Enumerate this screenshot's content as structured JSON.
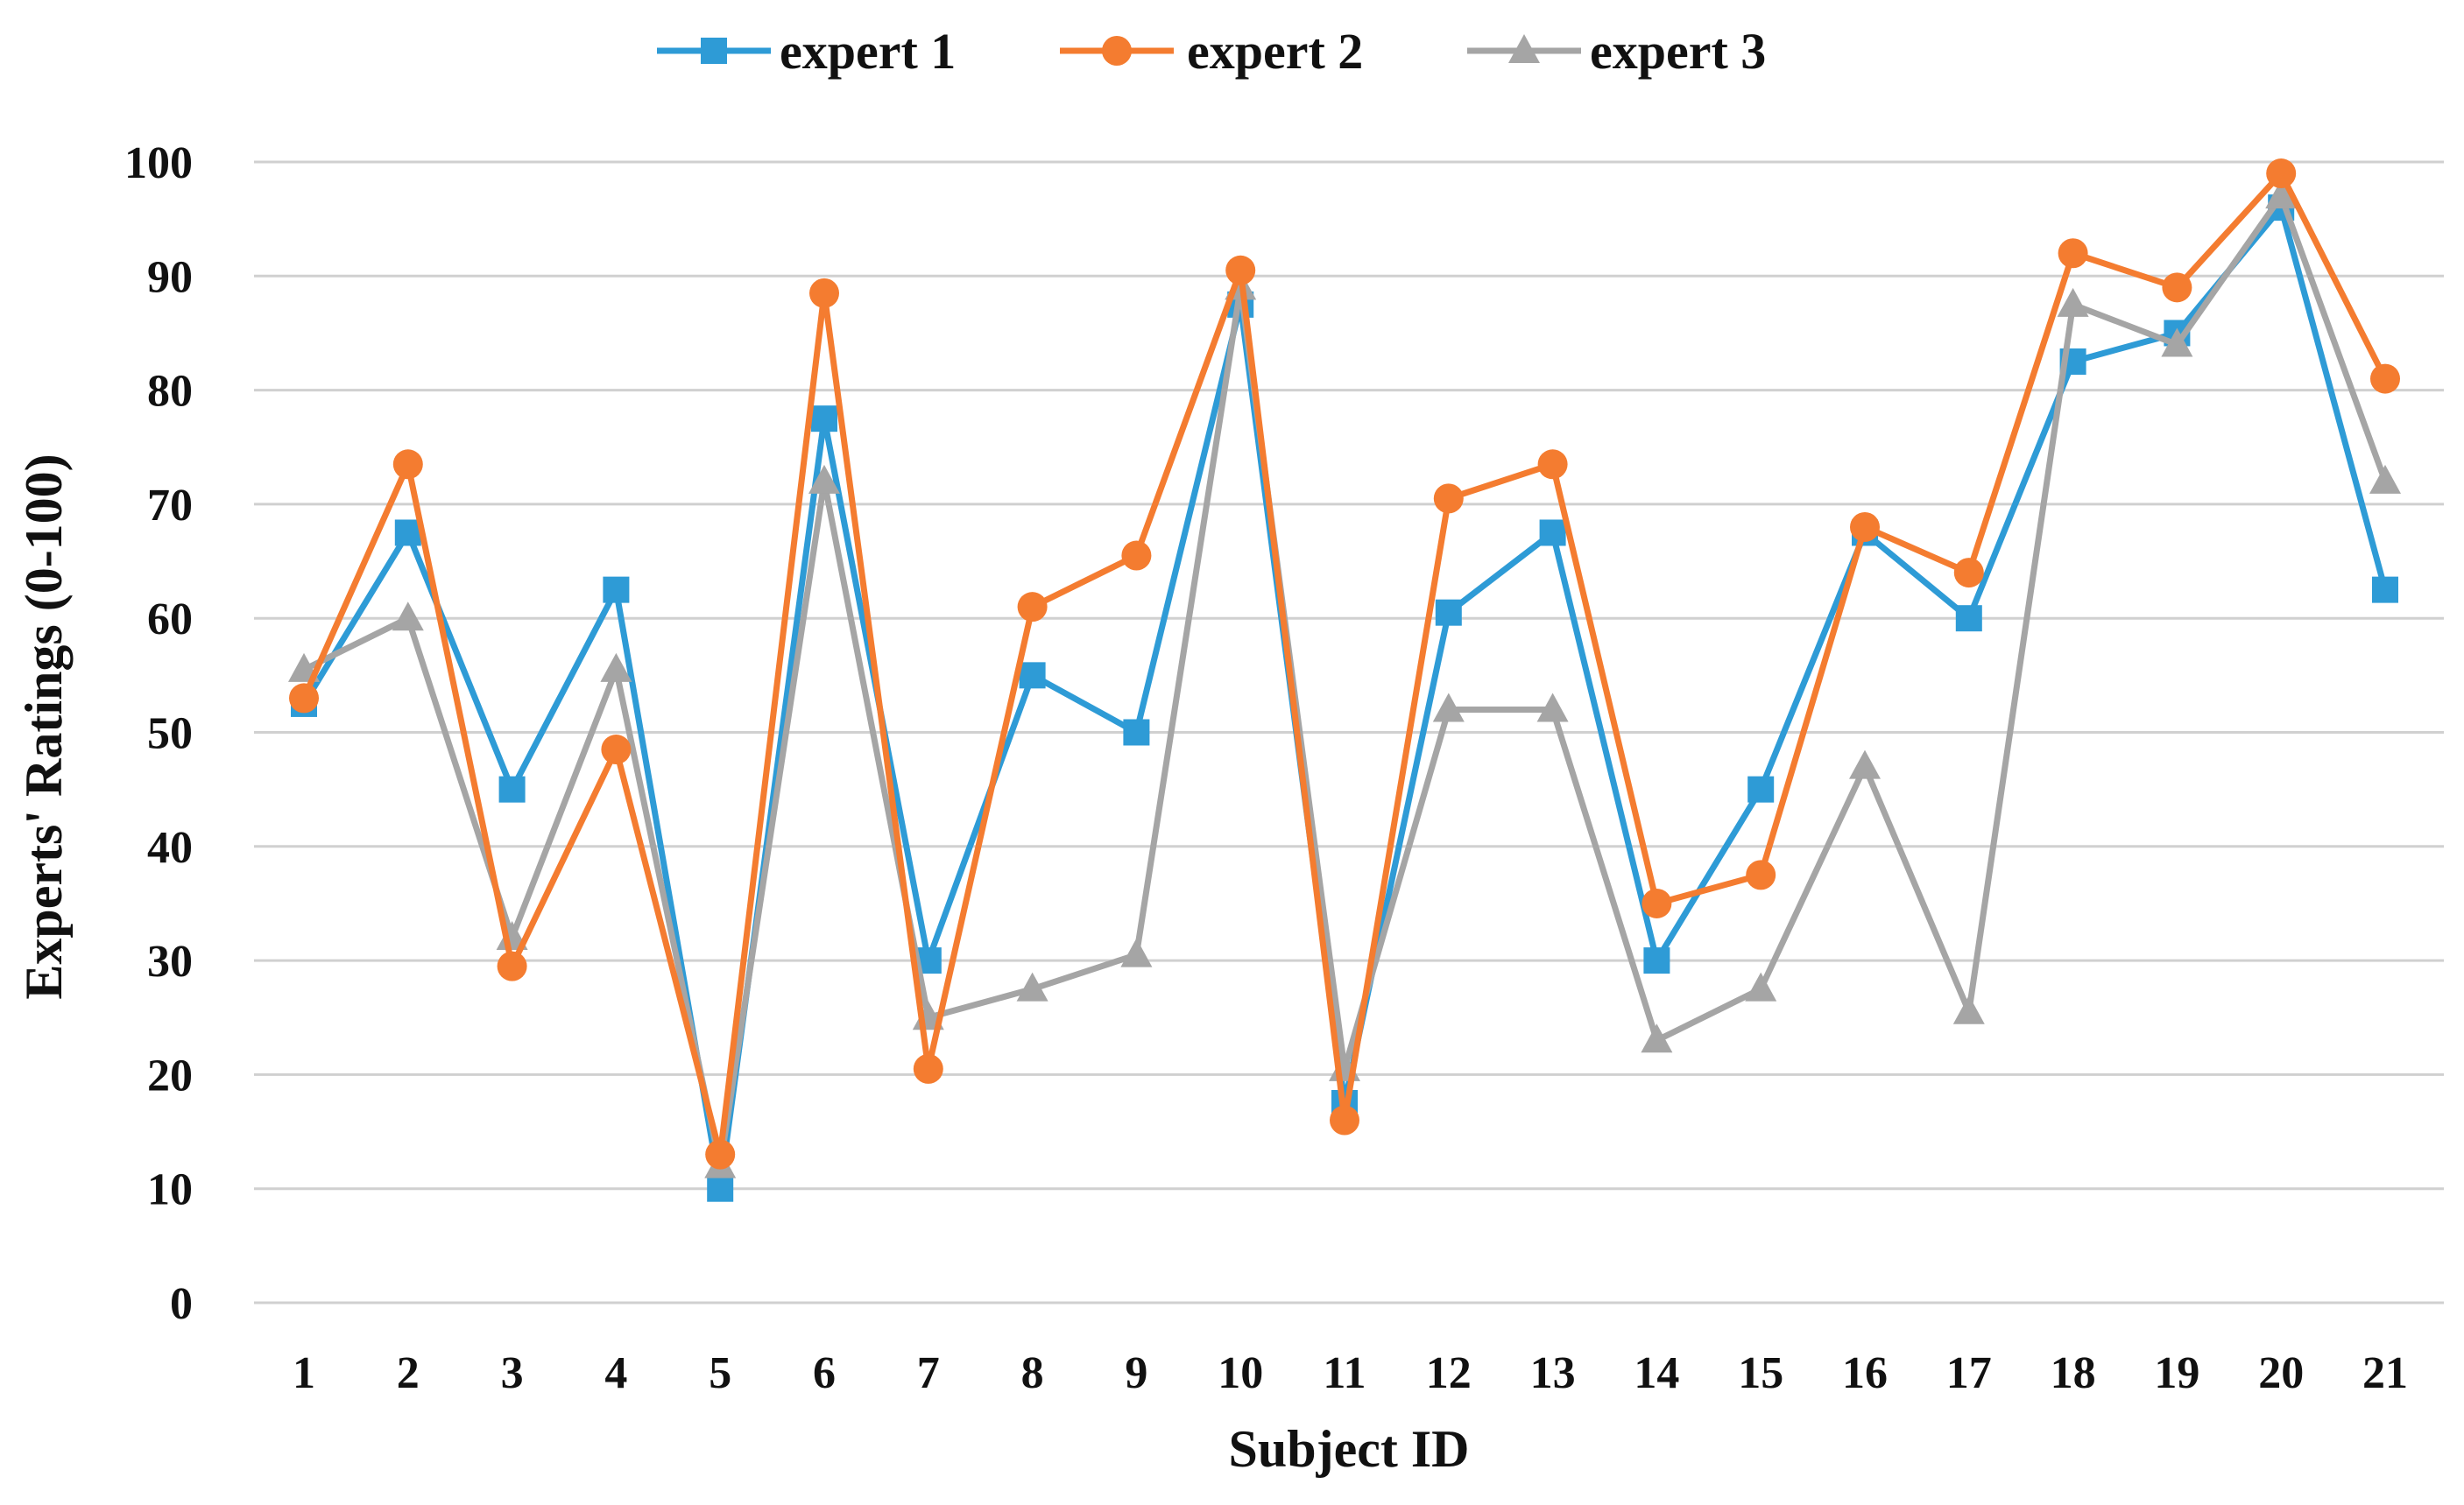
{
  "chart_data": {
    "type": "line",
    "title": "",
    "xlabel": "Subject ID",
    "ylabel": "Experts' Ratings (0-100)",
    "ylim": [
      0,
      100
    ],
    "yticks": [
      0,
      10,
      20,
      30,
      40,
      50,
      60,
      70,
      80,
      90,
      100
    ],
    "grid": true,
    "legend_position": "top",
    "categories": [
      "1",
      "2",
      "3",
      "4",
      "5",
      "6",
      "7",
      "8",
      "9",
      "10",
      "11",
      "12",
      "13",
      "14",
      "15",
      "16",
      "17",
      "18",
      "19",
      "20",
      "21"
    ],
    "series": [
      {
        "name": "expert 1",
        "color": "#2e9bd6",
        "marker": "square",
        "values": [
          52.5,
          67.5,
          45,
          62.5,
          10,
          77.5,
          30,
          55,
          50,
          87.5,
          17.5,
          60.5,
          67.5,
          30,
          45,
          67.5,
          60,
          82.5,
          85,
          96,
          62.5
        ]
      },
      {
        "name": "expert 2",
        "color": "#f47c30",
        "marker": "circle",
        "values": [
          53,
          73.5,
          29.5,
          48.5,
          13,
          88.5,
          20.5,
          61,
          65.5,
          90.5,
          16,
          70.5,
          73.5,
          35,
          37.5,
          68,
          64,
          92,
          89,
          99,
          81
        ]
      },
      {
        "name": "expert 3",
        "color": "#a5a5a5",
        "marker": "triangle",
        "values": [
          55.5,
          60,
          32,
          55.5,
          12,
          72,
          25,
          27.5,
          30.5,
          89,
          20.5,
          52,
          52,
          23,
          27.5,
          47,
          25.5,
          87.5,
          84,
          97,
          72
        ]
      }
    ]
  }
}
